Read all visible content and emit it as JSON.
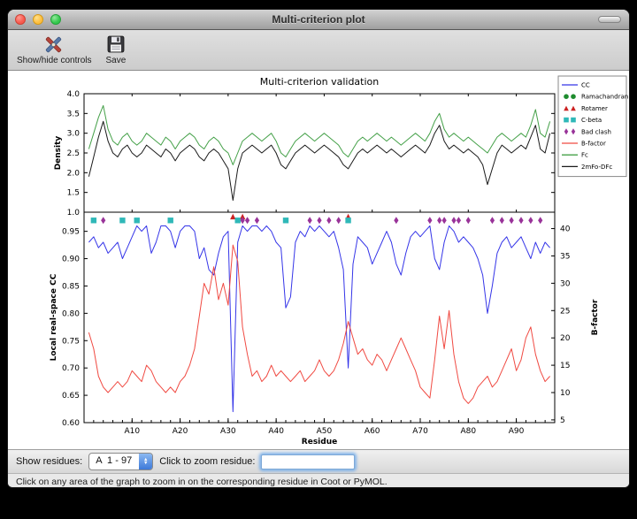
{
  "window": {
    "title": "Multi-criterion plot"
  },
  "toolbar": {
    "items": [
      {
        "label": "Show/hide controls",
        "icon": "tools-icon"
      },
      {
        "label": "Save",
        "icon": "save-icon"
      }
    ]
  },
  "controls": {
    "show_residues_label": "Show residues:",
    "residue_range_value": "A  1 - 97",
    "zoom_label": "Click to zoom residue:",
    "zoom_input_value": ""
  },
  "status_bar": {
    "text": "Click on any area of the graph to zoom in on the corresponding residue in Coot or PyMOL."
  },
  "chart_data": {
    "type": "line",
    "title": "Multi-criterion validation",
    "x_axis": {
      "label": "Residue",
      "min": 0,
      "max": 98,
      "ticks": [
        10,
        20,
        30,
        40,
        50,
        60,
        70,
        80,
        90
      ],
      "tick_labels": [
        "A10",
        "A20",
        "A30",
        "A40",
        "A50",
        "A60",
        "A70",
        "A80",
        "A90"
      ],
      "minor_tick_step": 2
    },
    "top_plot": {
      "ylabel": "Density",
      "ylim": [
        1.0,
        4.0
      ],
      "yticks": [
        1.0,
        1.5,
        2.0,
        2.5,
        3.0,
        3.5,
        4.0
      ],
      "ytick_labels": [
        "1.0",
        "1.5",
        "2.0",
        "2.5",
        "3.0",
        "3.5",
        "4.0"
      ],
      "series": [
        {
          "name": "Fc",
          "color": "#44a048",
          "values": [
            2.6,
            3.0,
            3.4,
            3.7,
            3.1,
            2.8,
            2.7,
            2.9,
            3.0,
            2.8,
            2.7,
            2.8,
            3.0,
            2.9,
            2.8,
            2.7,
            2.9,
            2.8,
            2.6,
            2.8,
            2.9,
            3.0,
            2.9,
            2.7,
            2.6,
            2.8,
            2.9,
            2.8,
            2.6,
            2.5,
            2.2,
            2.5,
            2.8,
            2.9,
            3.0,
            2.9,
            2.8,
            2.9,
            3.0,
            2.8,
            2.5,
            2.4,
            2.6,
            2.8,
            2.9,
            3.0,
            2.9,
            2.8,
            2.9,
            3.0,
            2.9,
            2.8,
            2.7,
            2.5,
            2.4,
            2.6,
            2.8,
            2.9,
            2.8,
            2.9,
            3.0,
            2.9,
            2.8,
            2.9,
            2.8,
            2.7,
            2.8,
            2.9,
            3.0,
            2.9,
            2.8,
            3.0,
            3.3,
            3.5,
            3.1,
            2.9,
            3.0,
            2.9,
            2.8,
            2.9,
            2.8,
            2.7,
            2.6,
            2.5,
            2.7,
            2.9,
            3.0,
            2.9,
            2.8,
            2.9,
            3.0,
            2.9,
            3.2,
            3.6,
            3.0,
            2.9,
            3.3
          ]
        },
        {
          "name": "2mFo-DFc",
          "color": "#1a1a1a",
          "values": [
            1.9,
            2.4,
            2.9,
            3.3,
            2.8,
            2.5,
            2.4,
            2.6,
            2.7,
            2.5,
            2.4,
            2.5,
            2.7,
            2.6,
            2.5,
            2.4,
            2.6,
            2.5,
            2.3,
            2.5,
            2.6,
            2.7,
            2.6,
            2.4,
            2.3,
            2.5,
            2.6,
            2.5,
            2.3,
            2.1,
            1.3,
            2.1,
            2.5,
            2.6,
            2.7,
            2.6,
            2.5,
            2.6,
            2.7,
            2.5,
            2.2,
            2.1,
            2.3,
            2.5,
            2.6,
            2.7,
            2.6,
            2.5,
            2.6,
            2.7,
            2.6,
            2.5,
            2.4,
            2.2,
            2.1,
            2.3,
            2.5,
            2.6,
            2.5,
            2.6,
            2.7,
            2.6,
            2.5,
            2.6,
            2.5,
            2.4,
            2.5,
            2.6,
            2.7,
            2.6,
            2.5,
            2.7,
            3.0,
            3.2,
            2.8,
            2.6,
            2.7,
            2.6,
            2.5,
            2.6,
            2.5,
            2.4,
            2.2,
            1.7,
            2.1,
            2.5,
            2.7,
            2.6,
            2.5,
            2.6,
            2.7,
            2.6,
            2.9,
            3.2,
            2.6,
            2.5,
            3.0
          ]
        }
      ]
    },
    "bottom_plot": {
      "ylabel_left": "Local real-space CC",
      "ylabel_right": "B-factor",
      "ylim_left": [
        0.6,
        0.985
      ],
      "yticks_left": [
        0.6,
        0.65,
        0.7,
        0.75,
        0.8,
        0.85,
        0.9,
        0.95
      ],
      "ytick_labels_left": [
        "0.60",
        "0.65",
        "0.70",
        "0.75",
        "0.80",
        "0.85",
        "0.90",
        "0.95"
      ],
      "ylim_right": [
        4.5,
        43
      ],
      "yticks_right": [
        5,
        10,
        15,
        20,
        25,
        30,
        35,
        40
      ],
      "ytick_labels_right": [
        "5",
        "10",
        "15",
        "20",
        "25",
        "30",
        "35",
        "40"
      ],
      "series": [
        {
          "name": "CC",
          "axis": "left",
          "color": "#3535e8",
          "values": [
            0.93,
            0.94,
            0.92,
            0.93,
            0.91,
            0.92,
            0.93,
            0.9,
            0.92,
            0.94,
            0.96,
            0.95,
            0.96,
            0.91,
            0.93,
            0.96,
            0.96,
            0.95,
            0.92,
            0.95,
            0.96,
            0.96,
            0.95,
            0.9,
            0.92,
            0.88,
            0.87,
            0.91,
            0.94,
            0.95,
            0.62,
            0.93,
            0.96,
            0.95,
            0.96,
            0.96,
            0.95,
            0.96,
            0.95,
            0.93,
            0.92,
            0.81,
            0.83,
            0.93,
            0.95,
            0.94,
            0.96,
            0.95,
            0.96,
            0.95,
            0.94,
            0.95,
            0.92,
            0.88,
            0.7,
            0.89,
            0.94,
            0.93,
            0.92,
            0.89,
            0.91,
            0.93,
            0.95,
            0.93,
            0.89,
            0.87,
            0.91,
            0.94,
            0.95,
            0.94,
            0.95,
            0.96,
            0.9,
            0.88,
            0.93,
            0.96,
            0.95,
            0.93,
            0.94,
            0.93,
            0.92,
            0.9,
            0.87,
            0.8,
            0.85,
            0.91,
            0.93,
            0.94,
            0.92,
            0.93,
            0.94,
            0.92,
            0.9,
            0.93,
            0.91,
            0.93,
            0.92
          ]
        },
        {
          "name": "B-factor",
          "axis": "right",
          "color": "#f04a42",
          "values": [
            21,
            18,
            13,
            11,
            10,
            11,
            12,
            11,
            12,
            14,
            13,
            12,
            15,
            14,
            12,
            11,
            10,
            11,
            10,
            12,
            13,
            15,
            18,
            24,
            30,
            28,
            33,
            27,
            30,
            26,
            37,
            34,
            22,
            17,
            13,
            14,
            12,
            13,
            15,
            13,
            14,
            13,
            12,
            13,
            14,
            12,
            13,
            14,
            16,
            14,
            13,
            14,
            16,
            19,
            23,
            20,
            17,
            18,
            16,
            15,
            17,
            16,
            14,
            16,
            18,
            20,
            18,
            16,
            14,
            11,
            10,
            9,
            16,
            24,
            18,
            25,
            17,
            12,
            9,
            8,
            9,
            11,
            12,
            13,
            11,
            12,
            14,
            16,
            18,
            14,
            16,
            20,
            22,
            17,
            14,
            12,
            13
          ]
        }
      ],
      "markers": [
        {
          "name": "Ramachandran",
          "shape": "circle",
          "color": "#1e8c2e",
          "y": 0.97,
          "residues": []
        },
        {
          "name": "Rotamer",
          "shape": "triangle",
          "color": "#cc2222",
          "y": 0.977,
          "residues": [
            31,
            33,
            55
          ]
        },
        {
          "name": "C-beta",
          "shape": "square",
          "color": "#2fb8b8",
          "y": 0.97,
          "residues": [
            2,
            8,
            11,
            18,
            32,
            42,
            55
          ]
        },
        {
          "name": "Bad clash",
          "shape": "diamond",
          "color": "#993399",
          "y": 0.97,
          "residues": [
            4,
            33,
            34,
            36,
            47,
            49,
            51,
            53,
            65,
            72,
            74,
            75,
            77,
            78,
            80,
            85,
            87,
            89,
            91,
            93,
            95
          ]
        }
      ]
    },
    "legend": [
      {
        "label": "CC",
        "swatch": "line",
        "color": "#3535e8"
      },
      {
        "label": "Ramachandran",
        "swatch": "circle",
        "color": "#1e8c2e"
      },
      {
        "label": "Rotamer",
        "swatch": "triangle",
        "color": "#cc2222"
      },
      {
        "label": "C-beta",
        "swatch": "square",
        "color": "#2fb8b8"
      },
      {
        "label": "Bad clash",
        "swatch": "diamond",
        "color": "#993399"
      },
      {
        "label": "B-factor",
        "swatch": "line",
        "color": "#f04a42"
      },
      {
        "label": "Fc",
        "swatch": "line",
        "color": "#44a048"
      },
      {
        "label": "2mFo-DFc",
        "swatch": "line",
        "color": "#1a1a1a"
      }
    ]
  }
}
